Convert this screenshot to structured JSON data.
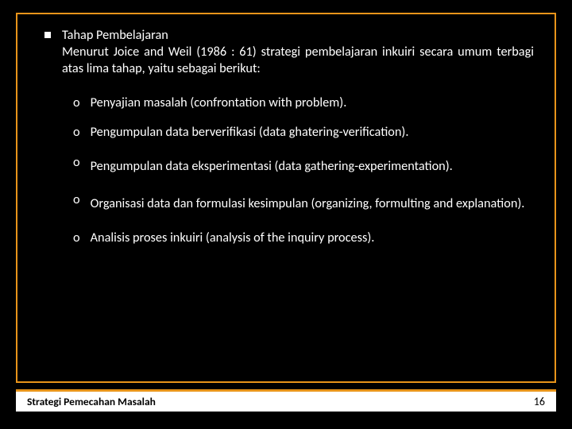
{
  "colors": {
    "background": "#000000",
    "accent": "#e8941a",
    "text": "#ffffff",
    "footer_bg": "#ffffff",
    "footer_text": "#000000"
  },
  "main": {
    "bullet_title": "Tahap Pembelajaran",
    "bullet_body": "Menurut Joice and Weil (1986 : 61) strategi pembelajaran inkuiri secara umum terbagi atas lima tahap, yaitu sebagai berikut:",
    "items": [
      "Penyajian masalah (confrontation with problem).",
      "Pengumpulan data berverifikasi (data ghatering-verification).",
      "Pengumpulan data eksperimentasi (data gathering-experimentation).",
      "Organisasi data dan formulasi kesimpulan (organizing, formulting and explanation).",
      "Analisis proses inkuiri (analysis of the inquiry process)."
    ]
  },
  "footer": {
    "title": "Strategi Pemecahan Masalah",
    "page": "16"
  }
}
